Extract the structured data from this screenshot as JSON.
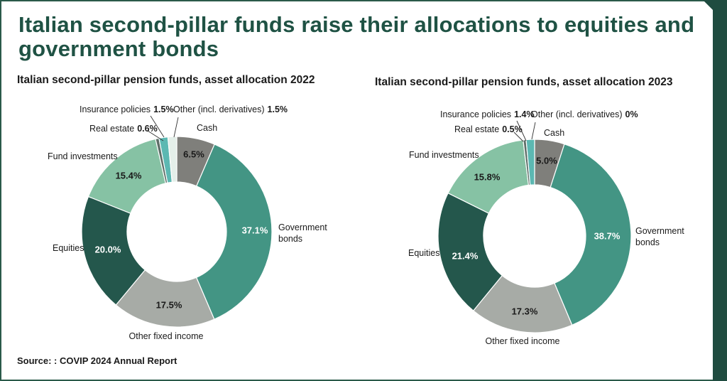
{
  "title": "Italian second-pillar funds raise their allocations to equities and government bonds",
  "source": "Source: : COVIP 2024 Annual Report",
  "chart_data": [
    {
      "type": "pie",
      "title": "Italian second-pillar pension funds, asset allocation 2022",
      "categories": [
        "Cash",
        "Government bonds",
        "Other fixed income",
        "Equities",
        "Fund investments",
        "Real estate",
        "Insurance policies",
        "Other (incl. derivatives)"
      ],
      "values": [
        6.5,
        37.1,
        17.5,
        20.0,
        15.4,
        0.6,
        1.5,
        1.5
      ],
      "value_labels": [
        "6.5%",
        "37.1%",
        "17.5%",
        "20.0%",
        "15.4%",
        "0.6%",
        "1.5%",
        "1.5%"
      ],
      "category_labels": [
        {
          "text": "Cash",
          "value": ""
        },
        {
          "text": "Government\nbonds",
          "value": ""
        },
        {
          "text": "Other fixed income",
          "value": ""
        },
        {
          "text": "Equities",
          "value": ""
        },
        {
          "text": "Fund investments",
          "value": ""
        },
        {
          "text": "Real estate",
          "value": "0.6%"
        },
        {
          "text": "Insurance policies",
          "value": "1.5%"
        },
        {
          "text": "Other (incl. derivatives)",
          "value": "1.5%"
        }
      ]
    },
    {
      "type": "pie",
      "title": "Italian second-pillar pension funds, asset allocation 2023",
      "categories": [
        "Cash",
        "Government bonds",
        "Other fixed income",
        "Equities",
        "Fund investments",
        "Real estate",
        "Insurance policies",
        "Other (incl. derivatives)"
      ],
      "values": [
        5.0,
        38.7,
        17.3,
        21.4,
        15.8,
        0.5,
        1.4,
        0
      ],
      "value_labels": [
        "5.0%",
        "38.7%",
        "17.3%",
        "21.4%",
        "15.8%",
        "0.5%",
        "1.4%",
        "0%"
      ],
      "category_labels": [
        {
          "text": "Cash",
          "value": ""
        },
        {
          "text": "Government\nbonds",
          "value": ""
        },
        {
          "text": "Other fixed income",
          "value": ""
        },
        {
          "text": "Equities",
          "value": ""
        },
        {
          "text": "Fund investments",
          "value": ""
        },
        {
          "text": "Real estate",
          "value": "0.5%"
        },
        {
          "text": "Insurance policies",
          "value": "1.4%"
        },
        {
          "text": "Other (incl. derivatives)",
          "value": "0%"
        }
      ]
    }
  ],
  "colors": [
    "#7f7f7b",
    "#439584",
    "#a7aba6",
    "#24574c",
    "#86c2a4",
    "#5e6e68",
    "#5cb8b2",
    "#e4efe9"
  ]
}
